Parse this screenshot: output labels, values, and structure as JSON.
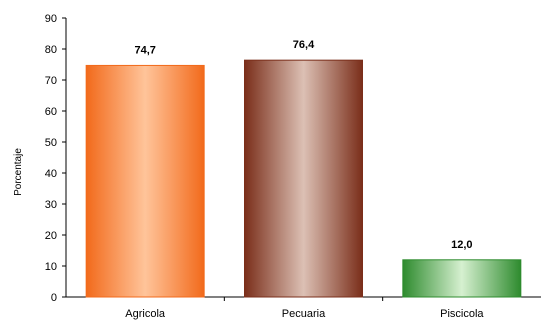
{
  "chart_data": {
    "type": "bar",
    "title": "",
    "xlabel": "",
    "ylabel": "Porcentaje",
    "ylim": [
      0,
      90
    ],
    "yticks": [
      0,
      10,
      20,
      30,
      40,
      50,
      60,
      70,
      80,
      90
    ],
    "grid": false,
    "categories": [
      "Agricola",
      "Pecuaria",
      "Piscicola"
    ],
    "values": [
      74.7,
      76.4,
      12.0
    ],
    "data_labels": [
      "74,7",
      "76,4",
      "12,0"
    ],
    "colors": {
      "Agricola": {
        "edge": "#f26a1b",
        "center": "#ffc49a"
      },
      "Pecuaria": {
        "edge": "#7a2e1a",
        "center": "#dcc0b4"
      },
      "Piscicola": {
        "edge": "#2e8b2e",
        "center": "#d6f0d0"
      }
    }
  }
}
